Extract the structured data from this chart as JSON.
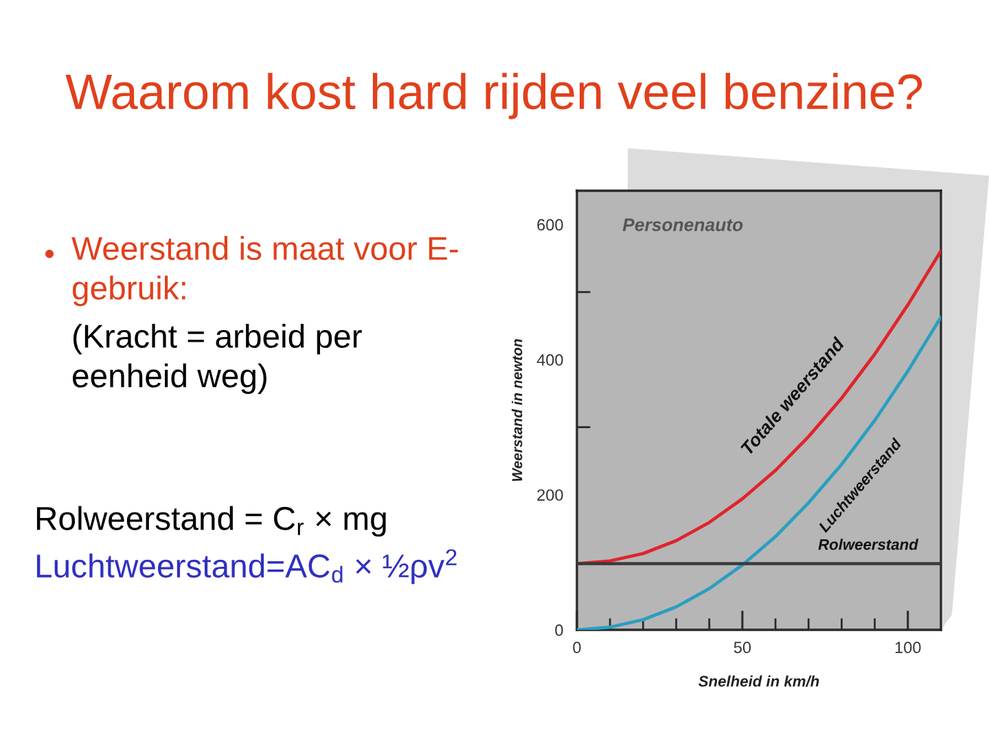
{
  "chart_data": {
    "type": "line",
    "title": "Waarom kost hard rijden veel benzine?",
    "xlabel": "Snelheid in km/h",
    "ylabel": "Weerstand in newton",
    "x": [
      0,
      10,
      20,
      30,
      40,
      50,
      60,
      70,
      80,
      90,
      100,
      110
    ],
    "series": [
      {
        "name": "Totale weerstand",
        "color": "#e0242c",
        "values": [
          98,
          102,
          113,
          132,
          159,
          194,
          236,
          286,
          343,
          408,
          481,
          561
        ]
      },
      {
        "name": "Luchtweerstand",
        "color": "#2a9fc0",
        "values": [
          0,
          4,
          15,
          34,
          61,
          96,
          138,
          188,
          245,
          310,
          383,
          463
        ]
      },
      {
        "name": "Rolweerstand",
        "color": "#3a3a3a",
        "x": [
          0,
          110
        ],
        "values": [
          98,
          98
        ]
      }
    ],
    "xlim": [
      0,
      110
    ],
    "ylim": [
      0,
      650
    ],
    "xticks": [
      0,
      {
        "value": 10,
        "label": null
      },
      {
        "value": 20,
        "label": null
      },
      {
        "value": 30,
        "label": null
      },
      {
        "value": 40,
        "label": null
      },
      50,
      {
        "value": 60,
        "label": null
      },
      {
        "value": 70,
        "label": null
      },
      {
        "value": 80,
        "label": null
      },
      {
        "value": 90,
        "label": null
      },
      100
    ],
    "yticks": [
      0,
      200,
      {
        "value": 300,
        "label": null
      },
      400,
      {
        "value": 500,
        "label": null
      },
      600
    ],
    "line_style": "solid",
    "annotations": [
      "Personenauto",
      "Weerstand is maat voor E-gebruik:",
      "(Kracht = arbeid per eenheid weg)",
      "Rolweerstand = C$_{r}$ × mg",
      "Luchtweerstand=AC$_{d}$ × ½ρv$^{2}$"
    ]
  }
}
